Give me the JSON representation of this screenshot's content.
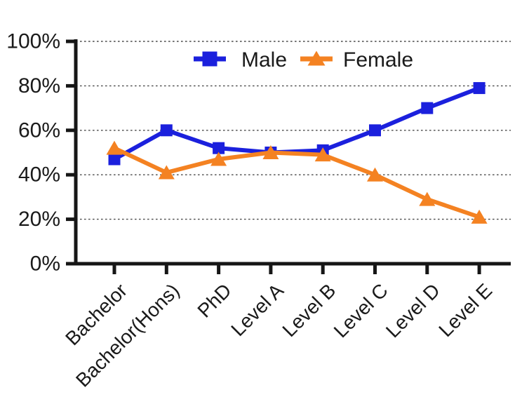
{
  "chart_data": {
    "type": "line",
    "title": "",
    "xlabel": "",
    "ylabel": "",
    "categories": [
      "Bachelor",
      "Bachelor(Hons)",
      "PhD",
      "Level A",
      "Level B",
      "Level C",
      "Level D",
      "Level E"
    ],
    "series": [
      {
        "name": "Male",
        "marker": "square",
        "color": "#1b20dd",
        "values": [
          47,
          60,
          52,
          50,
          51,
          60,
          70,
          79
        ]
      },
      {
        "name": "Female",
        "marker": "triangle",
        "color": "#f48222",
        "values": [
          52,
          41,
          47,
          50,
          49,
          40,
          29,
          21
        ]
      }
    ],
    "ylim": [
      0,
      100
    ],
    "y_tick_values": [
      0,
      20,
      40,
      60,
      80,
      100
    ],
    "y_tick_labels": [
      "0%",
      "20%",
      "40%",
      "60%",
      "80%",
      "100%"
    ],
    "x_tick_rotation_deg": -45,
    "grid": "horizontal-dashed",
    "legend_position": "top-center"
  },
  "colors": {
    "background": "#ffffff",
    "axis": "#161616",
    "gridline": "#4a4a4a",
    "text": "#1a1a1a",
    "male": "#1b20dd",
    "female": "#f48222"
  }
}
